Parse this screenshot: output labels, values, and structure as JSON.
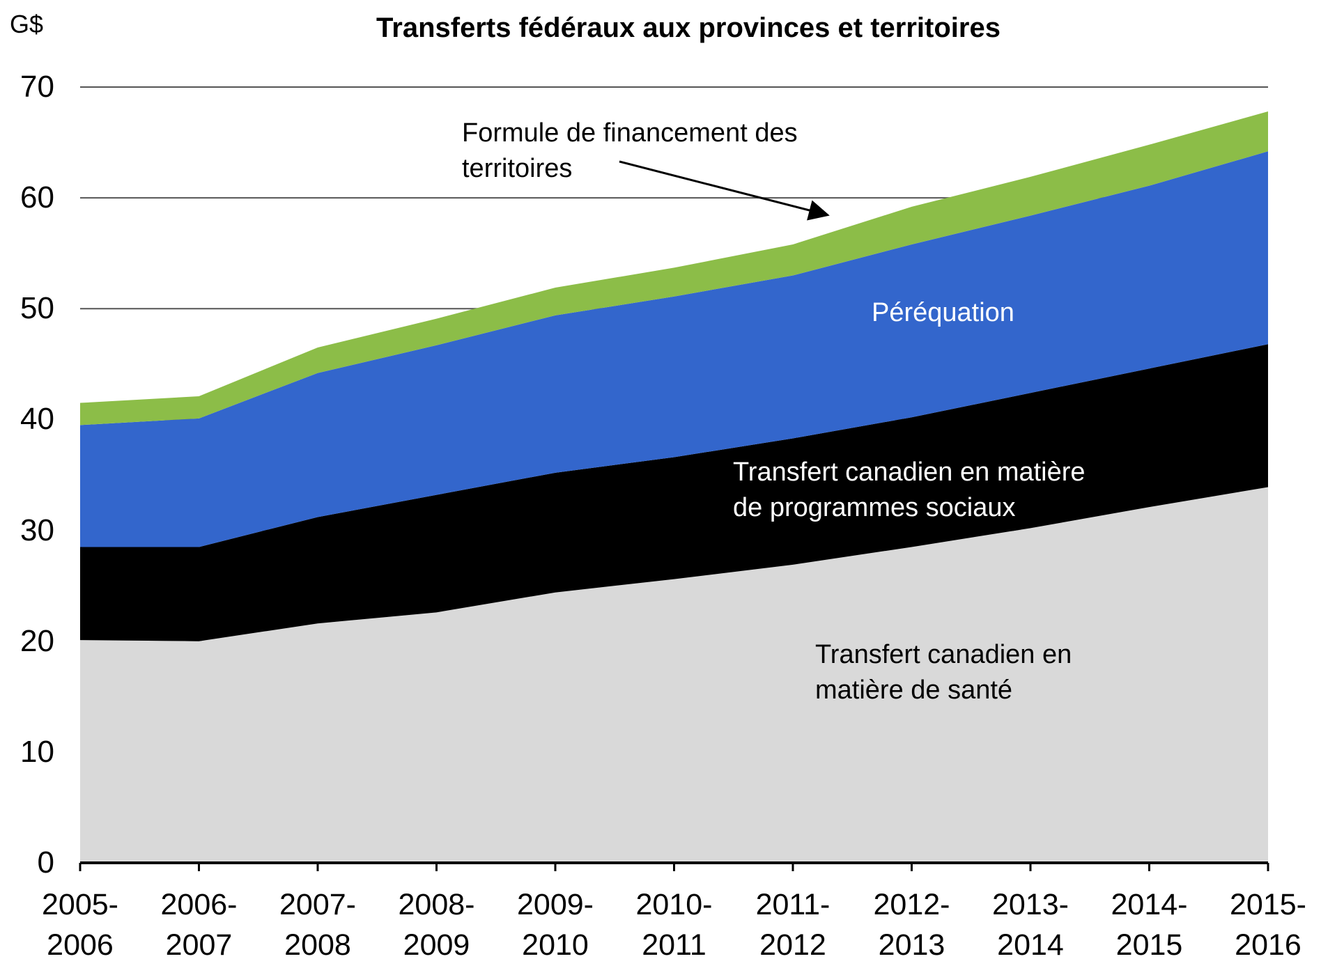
{
  "chart_data": {
    "type": "stacked_area",
    "title": "Transferts fédéraux aux provinces et territoires",
    "y_axis_label": "G$",
    "categories": [
      "2005-\n2006",
      "2006-\n2007",
      "2007-\n2008",
      "2008-\n2009",
      "2009-\n2010",
      "2010-\n2011",
      "2011-\n2012",
      "2012-\n2013",
      "2013-\n2014",
      "2014-\n2015",
      "2015-\n2016"
    ],
    "series": [
      {
        "name": "Transfert canadien en\nmatière de santé",
        "color": "#d9d9d9",
        "label_color": "#000000",
        "values": [
          20.1,
          20.0,
          21.6,
          22.6,
          24.4,
          25.6,
          26.9,
          28.5,
          30.2,
          32.1,
          33.9
        ]
      },
      {
        "name": "Transfert canadien en matière\nde programmes sociaux",
        "color": "#000000",
        "label_color": "#ffffff",
        "values": [
          8.4,
          8.5,
          9.6,
          10.6,
          10.8,
          11.0,
          11.4,
          11.7,
          12.2,
          12.5,
          12.9
        ]
      },
      {
        "name": "Péréquation",
        "color": "#3366cc",
        "label_color": "#ffffff",
        "values": [
          11.0,
          11.6,
          13.0,
          13.5,
          14.2,
          14.5,
          14.7,
          15.6,
          16.0,
          16.5,
          17.4
        ]
      },
      {
        "name": "Formule de financement des\nterritoires",
        "color": "#8cbd48",
        "label_color": "#000000",
        "values": [
          2.0,
          2.0,
          2.3,
          2.4,
          2.5,
          2.6,
          2.8,
          3.4,
          3.5,
          3.7,
          3.6
        ]
      }
    ],
    "ylim": [
      0,
      70
    ],
    "yticks": [
      0,
      10,
      20,
      30,
      40,
      50,
      60,
      70
    ],
    "grid": true
  }
}
